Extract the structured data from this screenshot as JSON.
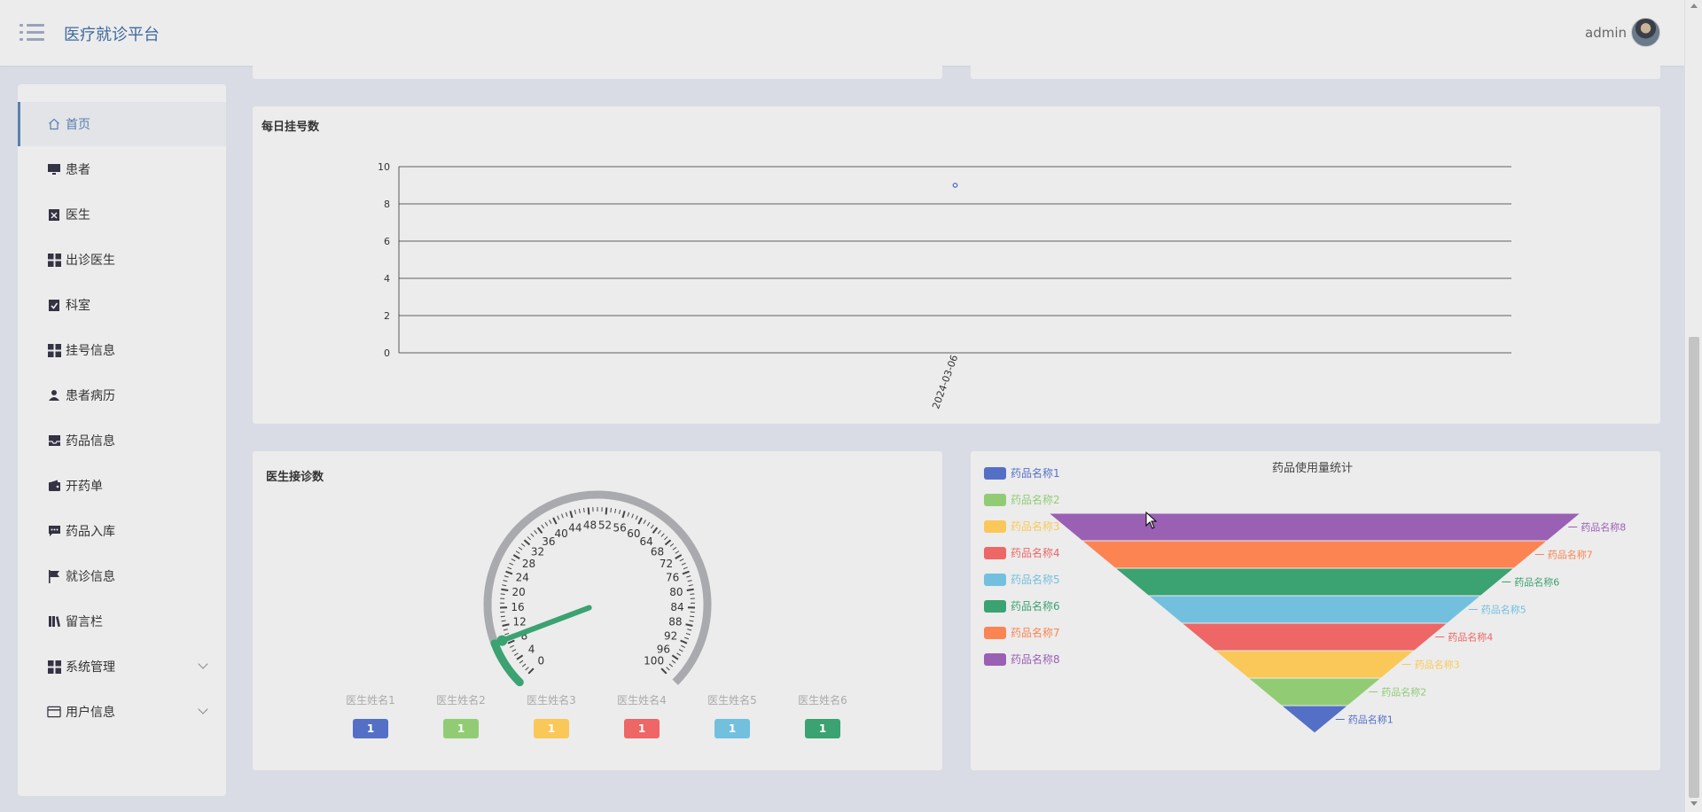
{
  "header": {
    "title": "医疗就诊平台",
    "username": "admin",
    "menu_icon": "menu-icon",
    "avatar_icon": "user-avatar"
  },
  "sidebar": {
    "items": [
      {
        "label": "首页",
        "icon": "home-icon",
        "active": true
      },
      {
        "label": "患者",
        "icon": "monitor-icon"
      },
      {
        "label": "医生",
        "icon": "clipboard-x-icon"
      },
      {
        "label": "出诊医生",
        "icon": "grid-icon"
      },
      {
        "label": "科室",
        "icon": "clipboard-check-icon"
      },
      {
        "label": "挂号信息",
        "icon": "grid-icon"
      },
      {
        "label": "患者病历",
        "icon": "user-icon"
      },
      {
        "label": "药品信息",
        "icon": "inbox-icon"
      },
      {
        "label": "开药单",
        "icon": "wallet-icon"
      },
      {
        "label": "药品入库",
        "icon": "message-icon"
      },
      {
        "label": "就诊信息",
        "icon": "flag-icon"
      },
      {
        "label": "留言栏",
        "icon": "book-icon"
      },
      {
        "label": "系统管理",
        "icon": "grid-icon",
        "expandable": true
      },
      {
        "label": "用户信息",
        "icon": "card-icon",
        "expandable": true
      }
    ]
  },
  "daily_chart": {
    "title": "每日挂号数",
    "y_ticks": [
      "0",
      "2",
      "4",
      "6",
      "8",
      "10"
    ],
    "x_tick": "2024-03-06"
  },
  "doctor_card": {
    "title": "医生接诊数",
    "gauge_ticks": [
      "0",
      "4",
      "8",
      "12",
      "16",
      "20",
      "24",
      "28",
      "32",
      "36",
      "40",
      "44",
      "48",
      "52",
      "56",
      "60",
      "64",
      "68",
      "72",
      "76",
      "80",
      "84",
      "88",
      "92",
      "96",
      "100"
    ],
    "gauge_value": 9,
    "doctors": [
      {
        "name": "医生姓名1",
        "count": "1",
        "color": "#5470c6"
      },
      {
        "name": "医生姓名2",
        "count": "1",
        "color": "#91cc75"
      },
      {
        "name": "医生姓名3",
        "count": "1",
        "color": "#fac858"
      },
      {
        "name": "医生姓名4",
        "count": "1",
        "color": "#ee6666"
      },
      {
        "name": "医生姓名5",
        "count": "1",
        "color": "#73c0de"
      },
      {
        "name": "医生姓名6",
        "count": "1",
        "color": "#3ba272"
      }
    ]
  },
  "funnel_card": {
    "title": "药品使用量统计",
    "legend": [
      {
        "name": "药品名称1",
        "color": "#5470c6"
      },
      {
        "name": "药品名称2",
        "color": "#91cc75"
      },
      {
        "name": "药品名称3",
        "color": "#fac858"
      },
      {
        "name": "药品名称4",
        "color": "#ee6666"
      },
      {
        "name": "药品名称5",
        "color": "#73c0de"
      },
      {
        "name": "药品名称6",
        "color": "#3ba272"
      },
      {
        "name": "药品名称7",
        "color": "#fc8452"
      },
      {
        "name": "药品名称8",
        "color": "#9a60b4"
      }
    ],
    "funnel_labels": [
      "药品名称8",
      "药品名称7",
      "药品名称6",
      "药品名称5",
      "药品名称4",
      "药品名称3",
      "药品名称2",
      "药品名称1"
    ]
  },
  "chart_data": [
    {
      "type": "scatter",
      "title": "每日挂号数",
      "x": [
        "2024-03-06"
      ],
      "y": [
        9
      ],
      "ylim": [
        0,
        10
      ],
      "grid": true,
      "color": "#5470c6"
    },
    {
      "type": "gauge",
      "title": "医生接诊数",
      "min": 0,
      "max": 100,
      "categories": [
        "医生姓名1",
        "医生姓名2",
        "医生姓名3",
        "医生姓名4",
        "医生姓名5",
        "医生姓名6"
      ],
      "values": [
        1,
        1,
        1,
        1,
        1,
        1
      ]
    },
    {
      "type": "funnel",
      "title": "药品使用量统计",
      "categories": [
        "药品名称8",
        "药品名称7",
        "药品名称6",
        "药品名称5",
        "药品名称4",
        "药品名称3",
        "药品名称2",
        "药品名称1"
      ],
      "values": [
        8,
        7,
        6,
        5,
        4,
        3,
        2,
        1
      ],
      "legend_position": "left"
    }
  ]
}
